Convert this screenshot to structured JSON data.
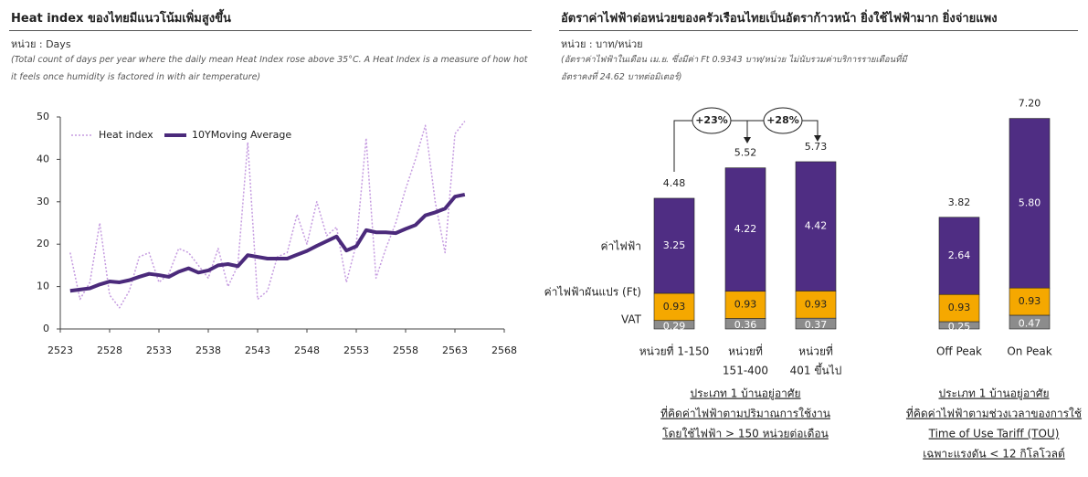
{
  "chart_data": [
    {
      "type": "line",
      "title": "Heat index ของไทยมีแนวโน้มเพิ่มสูงขึ้น",
      "subtitle": "หน่วย : Days",
      "note": "(Total count of days per year where the daily mean Heat Index rose above 35°C. A Heat Index is a measure of how hot it feels once humidity is factored in with air temperature)",
      "x": [
        2524,
        2525,
        2526,
        2527,
        2528,
        2529,
        2530,
        2531,
        2532,
        2533,
        2534,
        2535,
        2536,
        2537,
        2538,
        2539,
        2540,
        2541,
        2542,
        2543,
        2544,
        2545,
        2546,
        2547,
        2548,
        2549,
        2550,
        2551,
        2552,
        2553,
        2554,
        2555,
        2556,
        2557,
        2558,
        2559,
        2560,
        2561,
        2562,
        2563,
        2564
      ],
      "series": [
        {
          "name": "Heat index",
          "color": "#c59be0",
          "line_style": "dotted",
          "values": [
            18,
            7,
            11,
            25,
            8,
            5,
            9,
            17,
            18,
            11,
            13,
            19,
            18,
            15,
            12,
            19,
            10,
            15,
            44,
            7,
            9,
            17,
            18,
            27,
            20,
            30,
            22,
            24,
            11,
            20,
            45,
            12,
            19,
            25,
            33,
            40,
            48,
            30,
            18,
            46,
            49
          ]
        },
        {
          "name": "10YMoving Average",
          "color": "#4b2a7b",
          "line_style": "solid",
          "values": [
            9,
            9.3,
            9.6,
            10.5,
            11.2,
            11,
            11.5,
            12.3,
            13,
            12.7,
            12.3,
            13.5,
            14.3,
            13.3,
            13.8,
            15,
            15.3,
            14.8,
            17.4,
            17,
            16.6,
            16.6,
            16.6,
            17.5,
            18.4,
            19.6,
            20.7,
            21.8,
            18.5,
            19.5,
            23.3,
            22.8,
            22.8,
            22.6,
            23.6,
            24.5,
            26.8,
            27.5,
            28.4,
            31.2,
            31.7
          ]
        }
      ],
      "xlim": [
        2523,
        2568
      ],
      "xticks": [
        2523,
        2528,
        2533,
        2538,
        2543,
        2548,
        2553,
        2558,
        2563,
        2568
      ],
      "ylim": [
        0,
        50
      ],
      "yticks": [
        0,
        10,
        20,
        30,
        40,
        50
      ],
      "grid": false,
      "legend": "upper left"
    },
    {
      "type": "bar",
      "stacked": true,
      "title": "อัตราค่าไฟฟ้าต่อหน่วยของครัวเรือนไทยเป็นอัตราก้าวหน้า  ยิ่งใช้ไฟฟ้ามาก  ยิ่งจ่ายแพง",
      "subtitle": "หน่วย : บาท/หน่วย",
      "note": "(อัตราค่าไฟฟ้าในเดือน เม.ย. ซึ่งมีค่า Ft 0.9343 บาท/หน่วย ไม่นับรวมค่าบริการรายเดือนที่มีอัตราคงที่ 24.62 บาทต่อมิเตอร์)",
      "categories": [
        [
          "หน่วยที่ 1-150"
        ],
        [
          "หน่วยที่",
          "151-400"
        ],
        [
          "หน่วยที่",
          "401 ขึ้นไป"
        ],
        [
          "Off Peak"
        ],
        [
          "On Peak"
        ]
      ],
      "series": [
        {
          "name": "VAT",
          "color": "#8c8c8c",
          "values": [
            0.29,
            0.36,
            0.37,
            0.25,
            0.47
          ],
          "value_labels": [
            "0.29",
            "0.36",
            "0.37",
            "0.25",
            "0.47"
          ]
        },
        {
          "name": "ค่าไฟฟ้าผันแปร (Ft)",
          "color": "#f5a800",
          "values": [
            0.93,
            0.93,
            0.93,
            0.93,
            0.93
          ],
          "value_labels": [
            "0.93",
            "0.93",
            "0.93",
            "0.93",
            "0.93"
          ]
        },
        {
          "name": "ค่าไฟฟ้า",
          "color": "#4f2d83",
          "values": [
            3.25,
            4.22,
            4.42,
            2.64,
            5.8
          ],
          "value_labels": [
            "3.25",
            "4.22",
            "4.42",
            "2.64",
            "5.80"
          ]
        }
      ],
      "totals": [
        4.48,
        5.52,
        5.73,
        3.82,
        7.2
      ],
      "total_labels": [
        "4.48",
        "5.52",
        "5.73",
        "3.82",
        "7.20"
      ],
      "annotations": [
        "+23%",
        "+28%"
      ],
      "groups": [
        [
          "ประเภท 1 บ้านอยู่อาศัย",
          "ที่คิดค่าไฟฟ้าตามปริมาณการใช้งาน",
          "โดยใช้ไฟฟ้า > 150 หน่วยต่อเดือน"
        ],
        [
          "ประเภท 1 บ้านอยู่อาศัย",
          "ที่คิดค่าไฟฟ้าตามช่วงเวลาของการใช้",
          "Time of Use Tariff (TOU)",
          "เฉพาะแรงดัน < 12 กิโลโวลต์"
        ]
      ]
    }
  ]
}
